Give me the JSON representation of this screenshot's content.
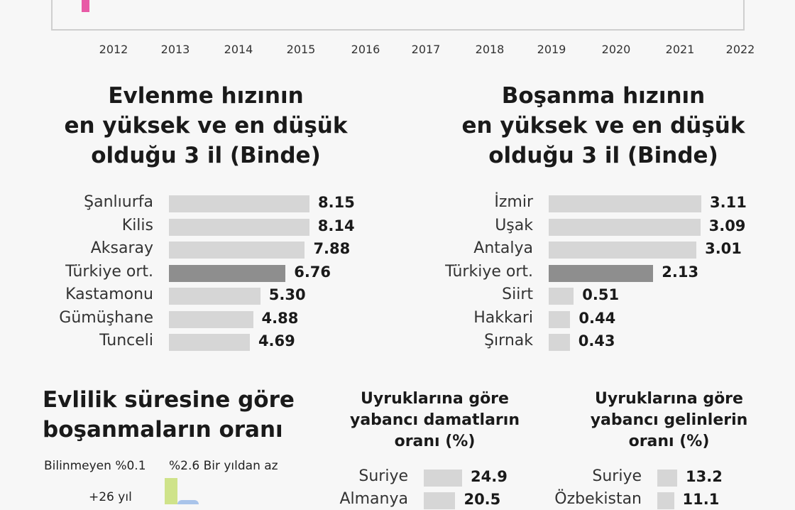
{
  "top_chart": {
    "years": [
      "2012",
      "2013",
      "2014",
      "2015",
      "2016",
      "2017",
      "2018",
      "2019",
      "2020",
      "2021",
      "2022"
    ]
  },
  "marriage_rate": {
    "title_line1": "Evlenme hızının",
    "title_line2": "en yüksek ve en düşük",
    "title_line3": "olduğu 3 il (Binde)"
  },
  "divorce_rate": {
    "title_line1": "Boşanma hızının",
    "title_line2": "en yüksek ve en düşük",
    "title_line3": "olduğu 3 il (Binde)"
  },
  "duration": {
    "title_line1": "Evlilik süresine göre",
    "title_line2": "boşanmaların oranı",
    "labels": {
      "unknown": "Bilinmeyen %0.1",
      "under_one": "%2.6 Bir yıldan az",
      "over26": "+26 yıl"
    }
  },
  "grooms": {
    "title_line1": "Uyruklarına göre",
    "title_line2": "yabancı damatların",
    "title_line3": "oranı (%)"
  },
  "brides": {
    "title_line1": "Uyruklarına göre",
    "title_line2": "yabancı gelinlerin",
    "title_line3": "oranı (%)"
  },
  "chart_data": [
    {
      "type": "bar",
      "title": "Evlenme hızının en yüksek ve en düşük olduğu 3 il (Binde)",
      "categories": [
        "Şanlıurfa",
        "Kilis",
        "Aksaray",
        "Türkiye ort.",
        "Kastamonu",
        "Gümüşhane",
        "Tunceli"
      ],
      "values": [
        8.15,
        8.14,
        7.88,
        6.76,
        5.3,
        4.88,
        4.69
      ],
      "value_labels": [
        "8.15",
        "8.14",
        "7.88",
        "6.76",
        "5.30",
        "4.88",
        "4.69"
      ],
      "highlight": "Türkiye ort."
    },
    {
      "type": "bar",
      "title": "Boşanma hızının en yüksek ve en düşük olduğu 3 il (Binde)",
      "categories": [
        "İzmir",
        "Uşak",
        "Antalya",
        "Türkiye ort.",
        "Siirt",
        "Hakkari",
        "Şırnak"
      ],
      "values": [
        3.11,
        3.09,
        3.01,
        2.13,
        0.51,
        0.44,
        0.43
      ],
      "value_labels": [
        "3.11",
        "3.09",
        "3.01",
        "2.13",
        "0.51",
        "0.44",
        "0.43"
      ],
      "highlight": "Türkiye ort."
    },
    {
      "type": "bar",
      "title": "Uyruklarına göre yabancı damatların oranı (%)",
      "categories": [
        "Suriye",
        "Almanya"
      ],
      "values": [
        24.9,
        20.5
      ],
      "value_labels": [
        "24.9",
        "20.5"
      ]
    },
    {
      "type": "bar",
      "title": "Uyruklarına göre yabancı gelinlerin oranı (%)",
      "categories": [
        "Suriye",
        "Özbekistan"
      ],
      "values": [
        13.2,
        11.1
      ],
      "value_labels": [
        "13.2",
        "11.1"
      ]
    }
  ],
  "colors": {
    "bar": "#d6d6d6",
    "bar_highlight": "#8e8e8e",
    "pink": "#e85aa6",
    "green": "#cfe38a",
    "blue": "#a9c4ea"
  }
}
